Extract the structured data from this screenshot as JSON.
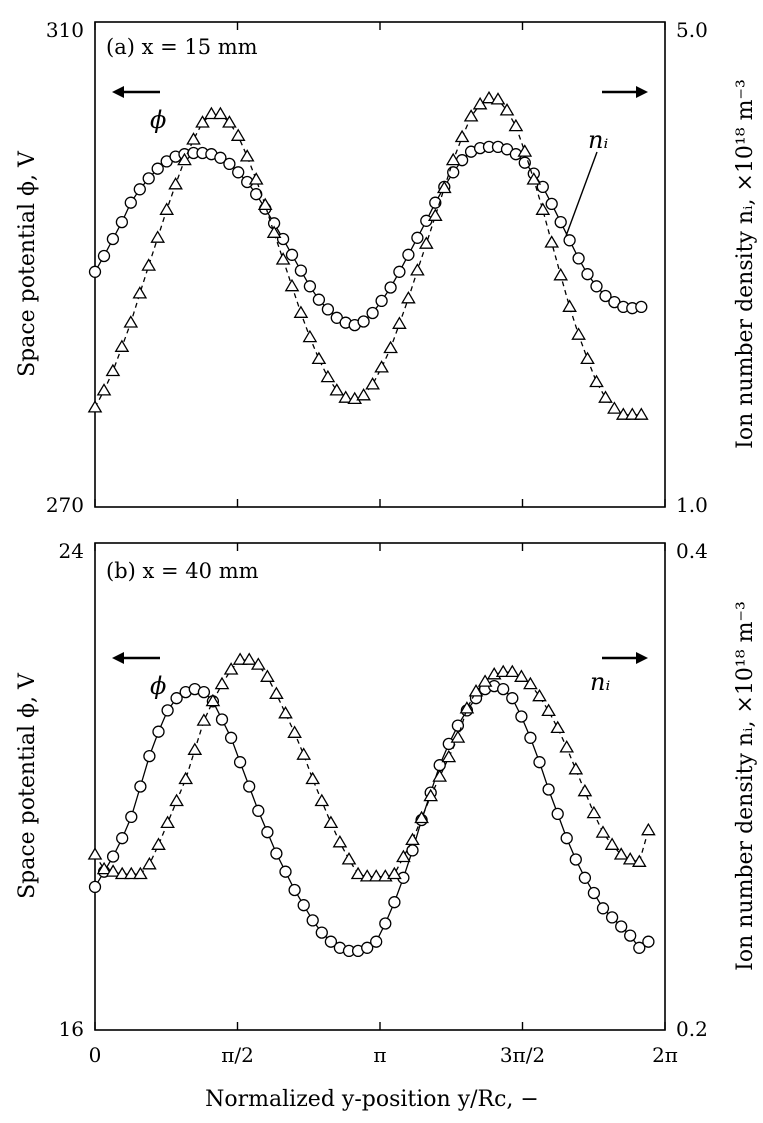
{
  "chart_data": [
    {
      "type": "line",
      "panel_label": "(a) x = 15 mm",
      "ylabel_left": "Space potential ϕ, V",
      "ylabel_right": "Ion number density nᵢ, ×10¹⁸ m⁻³",
      "ylim_left": [
        270,
        310
      ],
      "ylim_right": [
        1.0,
        5.0
      ],
      "left_ticks": [
        "310",
        "270"
      ],
      "right_ticks": [
        "5.0",
        "1.0"
      ],
      "series": [
        {
          "name": "ϕ",
          "axis": "left",
          "marker": "circle",
          "line": "solid",
          "x": [
            0.0,
            0.099,
            0.197,
            0.296,
            0.395,
            0.494,
            0.592,
            0.691,
            0.79,
            0.888,
            0.987,
            1.086,
            1.185,
            1.283,
            1.382,
            1.481,
            1.579,
            1.678,
            1.777,
            1.876,
            1.974,
            2.073,
            2.172,
            2.27,
            2.369,
            2.468,
            2.567,
            2.665,
            2.764,
            2.863,
            2.961,
            3.06,
            3.159,
            3.258,
            3.356,
            3.455,
            3.554,
            3.652,
            3.751,
            3.85,
            3.949,
            4.047,
            4.146,
            4.245,
            4.343,
            4.442,
            4.541,
            4.64,
            4.738,
            4.837,
            4.936,
            5.034,
            5.133,
            5.232,
            5.331,
            5.429,
            5.528,
            5.627,
            5.725,
            5.824,
            5.923,
            6.022
          ],
          "y": [
            289.4,
            290.7,
            292.1,
            293.5,
            295.1,
            296.2,
            297.1,
            297.9,
            298.5,
            298.9,
            299.1,
            299.2,
            299.2,
            299.1,
            298.8,
            298.3,
            297.6,
            296.8,
            295.8,
            294.6,
            293.4,
            292.1,
            290.8,
            289.5,
            288.2,
            287.1,
            286.3,
            285.6,
            285.2,
            285.0,
            285.3,
            286.0,
            287.0,
            288.1,
            289.4,
            290.8,
            292.2,
            293.6,
            295.1,
            296.4,
            297.6,
            298.6,
            299.3,
            299.6,
            299.7,
            299.7,
            299.5,
            299.1,
            298.4,
            297.5,
            296.4,
            295.0,
            293.5,
            292.0,
            290.5,
            289.2,
            288.2,
            287.4,
            286.9,
            286.5,
            286.4,
            286.5
          ]
        },
        {
          "name": "nᵢ",
          "axis": "right",
          "marker": "triangle",
          "line": "dashed",
          "x": [
            0.0,
            0.099,
            0.197,
            0.296,
            0.395,
            0.494,
            0.592,
            0.691,
            0.79,
            0.888,
            0.987,
            1.086,
            1.185,
            1.283,
            1.382,
            1.481,
            1.579,
            1.678,
            1.777,
            1.876,
            1.974,
            2.073,
            2.172,
            2.27,
            2.369,
            2.468,
            2.567,
            2.665,
            2.764,
            2.863,
            2.961,
            3.06,
            3.159,
            3.258,
            3.356,
            3.455,
            3.554,
            3.652,
            3.751,
            3.85,
            3.949,
            4.047,
            4.146,
            4.245,
            4.343,
            4.442,
            4.541,
            4.64,
            4.738,
            4.837,
            4.936,
            5.034,
            5.133,
            5.232,
            5.331,
            5.429,
            5.528,
            5.627,
            5.725,
            5.824,
            5.923,
            6.022
          ],
          "y": [
            1.82,
            1.96,
            2.12,
            2.32,
            2.52,
            2.76,
            2.99,
            3.22,
            3.45,
            3.66,
            3.86,
            4.03,
            4.17,
            4.24,
            4.24,
            4.17,
            4.06,
            3.89,
            3.7,
            3.49,
            3.26,
            3.04,
            2.82,
            2.6,
            2.4,
            2.22,
            2.07,
            1.96,
            1.9,
            1.89,
            1.92,
            2.01,
            2.15,
            2.31,
            2.51,
            2.72,
            2.95,
            3.17,
            3.4,
            3.63,
            3.86,
            4.05,
            4.22,
            4.32,
            4.37,
            4.36,
            4.27,
            4.14,
            3.93,
            3.7,
            3.45,
            3.18,
            2.91,
            2.65,
            2.42,
            2.22,
            2.03,
            1.9,
            1.81,
            1.76,
            1.76,
            1.76
          ]
        }
      ],
      "arrow_labels": {
        "left": "ϕ",
        "right": "nᵢ"
      }
    },
    {
      "type": "line",
      "panel_label": "(b) x = 40 mm",
      "ylabel_left": "Space potential ϕ, V",
      "ylabel_right": "Ion number density nᵢ, ×10¹⁸ m⁻³",
      "ylim_left": [
        16,
        24
      ],
      "ylim_right": [
        0.2,
        0.4
      ],
      "left_ticks": [
        "24",
        "16"
      ],
      "right_ticks": [
        "0.4",
        "0.2"
      ],
      "series": [
        {
          "name": "ϕ",
          "axis": "left",
          "marker": "circle",
          "line": "solid",
          "x": [
            0.0,
            0.1,
            0.2,
            0.3,
            0.4,
            0.5,
            0.6,
            0.7,
            0.8,
            0.9,
            1.0,
            1.1,
            1.2,
            1.3,
            1.4,
            1.5,
            1.6,
            1.7,
            1.8,
            1.9,
            2.0,
            2.1,
            2.2,
            2.3,
            2.4,
            2.5,
            2.6,
            2.7,
            2.8,
            2.9,
            3.0,
            3.1,
            3.2,
            3.3,
            3.4,
            3.5,
            3.6,
            3.7,
            3.8,
            3.9,
            4.0,
            4.1,
            4.2,
            4.3,
            4.4,
            4.5,
            4.6,
            4.7,
            4.8,
            4.9,
            5.0,
            5.1,
            5.2,
            5.3,
            5.4,
            5.5,
            5.6,
            5.7,
            5.8,
            5.9,
            6.0,
            6.1
          ],
          "y": [
            18.35,
            18.6,
            18.85,
            19.15,
            19.5,
            20.0,
            20.5,
            20.9,
            21.25,
            21.45,
            21.55,
            21.6,
            21.55,
            21.4,
            21.1,
            20.8,
            20.4,
            20.0,
            19.6,
            19.25,
            18.9,
            18.6,
            18.3,
            18.05,
            17.8,
            17.6,
            17.45,
            17.35,
            17.3,
            17.3,
            17.35,
            17.45,
            17.75,
            18.1,
            18.5,
            18.95,
            19.45,
            19.9,
            20.35,
            20.7,
            21.0,
            21.25,
            21.45,
            21.6,
            21.65,
            21.6,
            21.45,
            21.15,
            20.8,
            20.4,
            19.95,
            19.55,
            19.15,
            18.8,
            18.5,
            18.25,
            18.0,
            17.85,
            17.7,
            17.55,
            17.35,
            17.45
          ]
        },
        {
          "name": "nᵢ",
          "axis": "right",
          "marker": "triangle",
          "line": "dashed",
          "x": [
            0.0,
            0.1,
            0.2,
            0.3,
            0.4,
            0.5,
            0.6,
            0.7,
            0.8,
            0.9,
            1.0,
            1.1,
            1.2,
            1.3,
            1.4,
            1.5,
            1.6,
            1.7,
            1.8,
            1.9,
            2.0,
            2.1,
            2.2,
            2.3,
            2.4,
            2.5,
            2.6,
            2.7,
            2.8,
            2.9,
            3.0,
            3.1,
            3.2,
            3.3,
            3.4,
            3.5,
            3.6,
            3.7,
            3.8,
            3.9,
            4.0,
            4.1,
            4.2,
            4.3,
            4.4,
            4.5,
            4.6,
            4.7,
            4.8,
            4.9,
            5.0,
            5.1,
            5.2,
            5.3,
            5.4,
            5.5,
            5.6,
            5.7,
            5.8,
            5.9,
            6.0,
            6.1
          ],
          "y": [
            0.272,
            0.266,
            0.265,
            0.264,
            0.264,
            0.264,
            0.268,
            0.276,
            0.285,
            0.294,
            0.303,
            0.315,
            0.327,
            0.335,
            0.342,
            0.348,
            0.352,
            0.352,
            0.35,
            0.345,
            0.338,
            0.33,
            0.322,
            0.313,
            0.303,
            0.294,
            0.285,
            0.277,
            0.27,
            0.264,
            0.263,
            0.263,
            0.263,
            0.264,
            0.271,
            0.278,
            0.287,
            0.296,
            0.304,
            0.312,
            0.32,
            0.332,
            0.339,
            0.343,
            0.346,
            0.347,
            0.347,
            0.345,
            0.342,
            0.337,
            0.331,
            0.324,
            0.316,
            0.307,
            0.298,
            0.289,
            0.281,
            0.276,
            0.272,
            0.27,
            0.269,
            0.282
          ]
        }
      ],
      "arrow_labels": {
        "left": "ϕ",
        "right": "nᵢ"
      }
    }
  ],
  "x_axis": {
    "ticks": [
      {
        "value": 0,
        "label": "0"
      },
      {
        "value": 1.5708,
        "label": "π/2"
      },
      {
        "value": 3.1416,
        "label": "π"
      },
      {
        "value": 4.7124,
        "label": "3π/2"
      },
      {
        "value": 6.2832,
        "label": "2π"
      }
    ],
    "xlim": [
      0,
      6.2832
    ],
    "xlabel": "Normalized y-position y/Rc, −"
  }
}
